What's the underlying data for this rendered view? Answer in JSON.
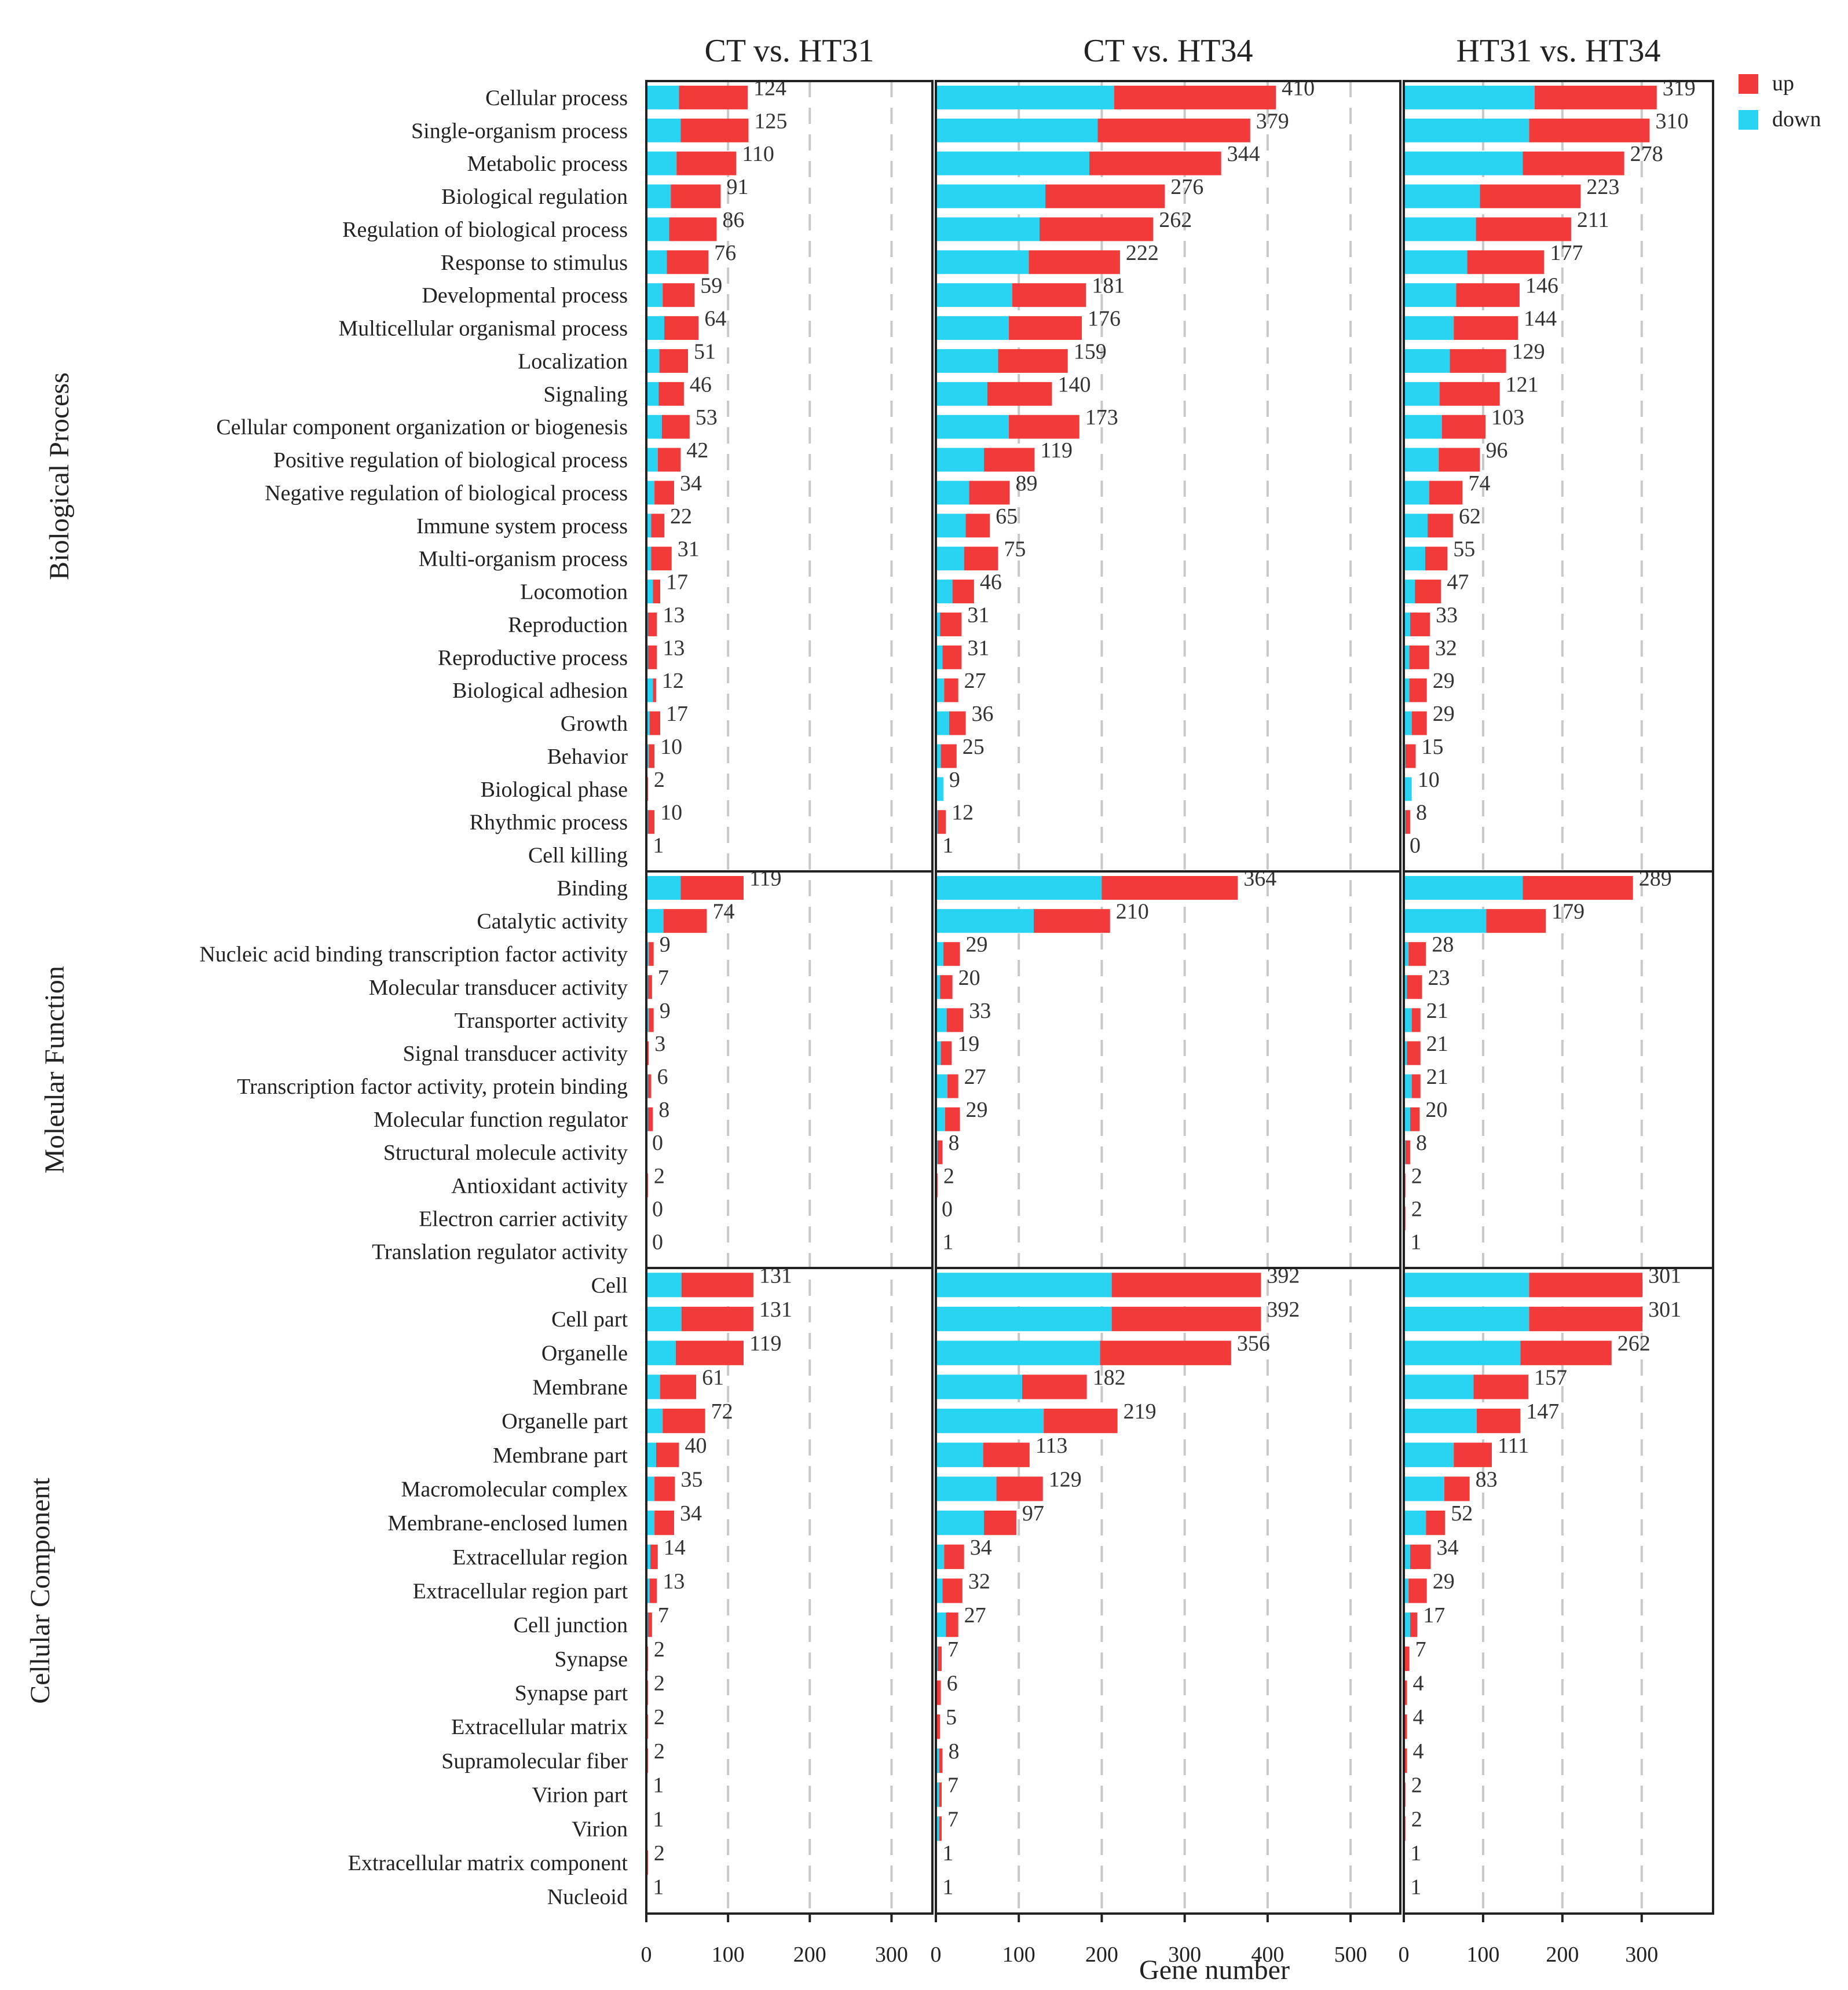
{
  "chart_data": {
    "type": "bar",
    "stacked": true,
    "orientation": "horizontal",
    "xlabel": "Gene number",
    "legend": [
      {
        "name": "up",
        "color": "#f33a3a"
      },
      {
        "name": "down",
        "color": "#29d4f2"
      }
    ],
    "legend_position": "top-right",
    "colors": {
      "up": "#f33a3a",
      "down": "#29d4f2"
    },
    "groups": [
      {
        "name": "Biological Process",
        "categories": [
          "Cellular process",
          "Single-organism process",
          "Metabolic process",
          "Biological regulation",
          "Regulation of biological process",
          "Response to stimulus",
          "Developmental process",
          "Multicellular organismal process",
          "Localization",
          "Signaling",
          "Cellular component organization or biogenesis",
          "Positive regulation of biological process",
          "Negative regulation of biological process",
          "Immune system process",
          "Multi-organism process",
          "Locomotion",
          "Reproduction",
          "Reproductive process",
          "Biological adhesion",
          "Growth",
          "Behavior",
          "Biological phase",
          "Rhythmic process",
          "Cell killing"
        ]
      },
      {
        "name": "Moleular Function",
        "categories": [
          "Binding",
          "Catalytic activity",
          "Nucleic acid binding transcription factor activity",
          "Molecular transducer activity",
          "Transporter activity",
          "Signal transducer activity",
          "Transcription factor activity, protein binding",
          "Molecular function regulator",
          "Structural molecule activity",
          "Antioxidant activity",
          "Electron carrier activity",
          "Translation regulator activity"
        ]
      },
      {
        "name": "Cellular Component",
        "categories": [
          "Cell",
          "Cell part",
          "Organelle",
          "Membrane",
          "Organelle part",
          "Membrane part",
          "Macromolecular complex",
          "Membrane-enclosed lumen",
          "Extracellular region",
          "Extracellular region part",
          "Cell junction",
          "Synapse",
          "Synapse part",
          "Extracellular matrix",
          "Supramolecular fiber",
          "Virion part",
          "Virion",
          "Extracellular matrix component",
          "Nucleoid"
        ]
      }
    ],
    "panels": [
      {
        "title": "CT vs. HT31",
        "xlim": [
          0,
          350
        ],
        "xticks": [
          0,
          100,
          200,
          300
        ],
        "totals": [
          124,
          125,
          110,
          91,
          86,
          76,
          59,
          64,
          51,
          46,
          53,
          42,
          34,
          22,
          31,
          17,
          13,
          13,
          12,
          17,
          10,
          2,
          10,
          1,
          119,
          74,
          9,
          7,
          9,
          3,
          6,
          8,
          0,
          2,
          0,
          0,
          131,
          131,
          119,
          61,
          72,
          40,
          35,
          34,
          14,
          13,
          7,
          2,
          2,
          2,
          2,
          1,
          1,
          2,
          1
        ],
        "down": [
          40,
          42,
          37,
          30,
          28,
          25,
          20,
          22,
          16,
          15,
          19,
          14,
          10,
          6,
          6,
          8,
          2,
          2,
          8,
          4,
          3,
          1,
          2,
          0,
          42,
          21,
          3,
          2,
          3,
          1,
          2,
          2,
          0,
          1,
          0,
          0,
          43,
          43,
          36,
          17,
          20,
          12,
          10,
          10,
          5,
          4,
          2,
          1,
          1,
          1,
          1,
          0,
          0,
          1,
          0
        ],
        "up": [
          84,
          83,
          73,
          61,
          58,
          51,
          39,
          42,
          35,
          31,
          34,
          28,
          24,
          16,
          25,
          9,
          11,
          11,
          4,
          13,
          7,
          1,
          8,
          1,
          77,
          53,
          6,
          5,
          6,
          2,
          4,
          6,
          0,
          1,
          0,
          0,
          88,
          88,
          83,
          44,
          52,
          28,
          25,
          24,
          9,
          9,
          5,
          1,
          1,
          1,
          1,
          1,
          1,
          1,
          1
        ]
      },
      {
        "title": "CT vs. HT34",
        "xlim": [
          0,
          560
        ],
        "xticks": [
          0,
          100,
          200,
          300,
          400,
          500
        ],
        "totals": [
          410,
          379,
          344,
          276,
          262,
          222,
          181,
          176,
          159,
          140,
          173,
          119,
          89,
          65,
          75,
          46,
          31,
          31,
          27,
          36,
          25,
          9,
          12,
          1,
          364,
          210,
          29,
          20,
          33,
          19,
          27,
          29,
          8,
          2,
          0,
          1,
          392,
          392,
          356,
          182,
          219,
          113,
          129,
          97,
          34,
          32,
          27,
          7,
          6,
          5,
          8,
          7,
          7,
          1,
          1
        ],
        "down": [
          215,
          195,
          185,
          132,
          125,
          112,
          92,
          88,
          75,
          62,
          88,
          58,
          40,
          36,
          34,
          20,
          5,
          8,
          10,
          16,
          6,
          9,
          2,
          1,
          200,
          118,
          9,
          5,
          13,
          6,
          14,
          11,
          2,
          1,
          0,
          1,
          212,
          212,
          198,
          104,
          130,
          57,
          73,
          58,
          10,
          8,
          12,
          2,
          1,
          1,
          4,
          4,
          4,
          1,
          1
        ],
        "up": [
          195,
          184,
          159,
          144,
          137,
          110,
          89,
          88,
          84,
          78,
          85,
          61,
          49,
          29,
          41,
          26,
          26,
          23,
          17,
          20,
          19,
          0,
          10,
          0,
          164,
          92,
          20,
          15,
          20,
          13,
          13,
          18,
          6,
          1,
          0,
          0,
          180,
          180,
          158,
          78,
          89,
          56,
          56,
          39,
          24,
          24,
          15,
          5,
          5,
          4,
          4,
          3,
          3,
          0,
          0
        ]
      },
      {
        "title": "HT31 vs. HT34",
        "xlim": [
          0,
          390
        ],
        "xticks": [
          0,
          100,
          200,
          300
        ],
        "totals": [
          319,
          310,
          278,
          223,
          211,
          177,
          146,
          144,
          129,
          121,
          103,
          96,
          74,
          62,
          55,
          47,
          33,
          32,
          29,
          29,
          15,
          10,
          8,
          0,
          289,
          179,
          28,
          23,
          21,
          21,
          21,
          20,
          8,
          2,
          2,
          1,
          301,
          301,
          262,
          157,
          147,
          111,
          83,
          52,
          34,
          29,
          17,
          7,
          4,
          4,
          4,
          2,
          2,
          1,
          1
        ],
        "down": [
          165,
          158,
          150,
          96,
          91,
          80,
          66,
          63,
          58,
          45,
          48,
          44,
          32,
          30,
          27,
          14,
          8,
          7,
          7,
          10,
          2,
          10,
          2,
          0,
          150,
          104,
          6,
          4,
          10,
          4,
          10,
          8,
          2,
          1,
          1,
          1,
          158,
          158,
          147,
          88,
          92,
          63,
          51,
          28,
          8,
          6,
          8,
          1,
          1,
          1,
          1,
          1,
          1,
          0,
          0
        ],
        "up": [
          154,
          152,
          128,
          127,
          120,
          97,
          80,
          81,
          71,
          76,
          55,
          52,
          42,
          32,
          28,
          33,
          25,
          25,
          22,
          19,
          13,
          0,
          6,
          0,
          139,
          75,
          22,
          19,
          11,
          17,
          11,
          12,
          6,
          1,
          1,
          0,
          143,
          143,
          115,
          69,
          55,
          48,
          32,
          24,
          26,
          23,
          9,
          6,
          3,
          3,
          3,
          1,
          1,
          1,
          1
        ]
      }
    ]
  }
}
